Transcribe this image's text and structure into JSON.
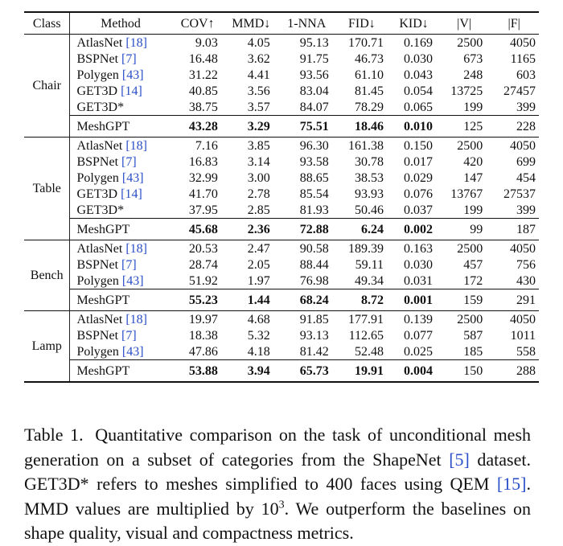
{
  "table": {
    "headers": [
      "Class",
      "Method",
      "COV↑",
      "MMD↓",
      "1-NNA",
      "FID↓",
      "KID↓",
      "|V|",
      "|F|"
    ],
    "groups": [
      {
        "class": "Chair",
        "rows": [
          {
            "method": "AtlasNet",
            "cite": "[18]",
            "cov": "9.03",
            "mmd": "4.05",
            "nna": "95.13",
            "fid": "170.71",
            "kid": "0.169",
            "v": "2500",
            "f": "4050"
          },
          {
            "method": "BSPNet",
            "cite": "[7]",
            "cov": "16.48",
            "mmd": "3.62",
            "nna": "91.75",
            "fid": "46.73",
            "kid": "0.030",
            "v": "673",
            "f": "1165"
          },
          {
            "method": "Polygen",
            "cite": "[43]",
            "cov": "31.22",
            "mmd": "4.41",
            "nna": "93.56",
            "fid": "61.10",
            "kid": "0.043",
            "v": "248",
            "f": "603"
          },
          {
            "method": "GET3D",
            "cite": "[14]",
            "cov": "40.85",
            "mmd": "3.56",
            "nna": "83.04",
            "fid": "81.45",
            "kid": "0.054",
            "v": "13725",
            "f": "27457"
          },
          {
            "method": "GET3D*",
            "cite": "",
            "cov": "38.75",
            "mmd": "3.57",
            "nna": "84.07",
            "fid": "78.29",
            "kid": "0.065",
            "v": "199",
            "f": "399"
          }
        ],
        "meshgpt": {
          "method": "MeshGPT",
          "cov": "43.28",
          "mmd": "3.29",
          "nna": "75.51",
          "fid": "18.46",
          "kid": "0.010",
          "v": "125",
          "f": "228"
        }
      },
      {
        "class": "Table",
        "rows": [
          {
            "method": "AtlasNet",
            "cite": "[18]",
            "cov": "7.16",
            "mmd": "3.85",
            "nna": "96.30",
            "fid": "161.38",
            "kid": "0.150",
            "v": "2500",
            "f": "4050"
          },
          {
            "method": "BSPNet",
            "cite": "[7]",
            "cov": "16.83",
            "mmd": "3.14",
            "nna": "93.58",
            "fid": "30.78",
            "kid": "0.017",
            "v": "420",
            "f": "699"
          },
          {
            "method": "Polygen",
            "cite": "[43]",
            "cov": "32.99",
            "mmd": "3.00",
            "nna": "88.65",
            "fid": "38.53",
            "kid": "0.029",
            "v": "147",
            "f": "454"
          },
          {
            "method": "GET3D",
            "cite": "[14]",
            "cov": "41.70",
            "mmd": "2.78",
            "nna": "85.54",
            "fid": "93.93",
            "kid": "0.076",
            "v": "13767",
            "f": "27537"
          },
          {
            "method": "GET3D*",
            "cite": "",
            "cov": "37.95",
            "mmd": "2.85",
            "nna": "81.93",
            "fid": "50.46",
            "kid": "0.037",
            "v": "199",
            "f": "399"
          }
        ],
        "meshgpt": {
          "method": "MeshGPT",
          "cov": "45.68",
          "mmd": "2.36",
          "nna": "72.88",
          "fid": "6.24",
          "kid": "0.002",
          "v": "99",
          "f": "187"
        }
      },
      {
        "class": "Bench",
        "rows": [
          {
            "method": "AtlasNet",
            "cite": "[18]",
            "cov": "20.53",
            "mmd": "2.47",
            "nna": "90.58",
            "fid": "189.39",
            "kid": "0.163",
            "v": "2500",
            "f": "4050"
          },
          {
            "method": "BSPNet",
            "cite": "[7]",
            "cov": "28.74",
            "mmd": "2.05",
            "nna": "88.44",
            "fid": "59.11",
            "kid": "0.030",
            "v": "457",
            "f": "756"
          },
          {
            "method": "Polygen",
            "cite": "[43]",
            "cov": "51.92",
            "mmd": "1.97",
            "nna": "76.98",
            "fid": "49.34",
            "kid": "0.031",
            "v": "172",
            "f": "430"
          }
        ],
        "meshgpt": {
          "method": "MeshGPT",
          "cov": "55.23",
          "mmd": "1.44",
          "nna": "68.24",
          "fid": "8.72",
          "kid": "0.001",
          "v": "159",
          "f": "291"
        }
      },
      {
        "class": "Lamp",
        "rows": [
          {
            "method": "AtlasNet",
            "cite": "[18]",
            "cov": "19.97",
            "mmd": "4.68",
            "nna": "91.85",
            "fid": "177.91",
            "kid": "0.139",
            "v": "2500",
            "f": "4050"
          },
          {
            "method": "BSPNet",
            "cite": "[7]",
            "cov": "18.38",
            "mmd": "5.32",
            "nna": "93.13",
            "fid": "112.65",
            "kid": "0.077",
            "v": "587",
            "f": "1011"
          },
          {
            "method": "Polygen",
            "cite": "[43]",
            "cov": "47.86",
            "mmd": "4.18",
            "nna": "81.42",
            "fid": "52.48",
            "kid": "0.025",
            "v": "185",
            "f": "558"
          }
        ],
        "meshgpt": {
          "method": "MeshGPT",
          "cov": "53.88",
          "mmd": "3.94",
          "nna": "65.73",
          "fid": "19.91",
          "kid": "0.004",
          "v": "150",
          "f": "288"
        }
      }
    ]
  },
  "caption": {
    "label": "Table 1.",
    "part1": "Quantitative comparison on the task of unconditional mesh generation on a subset of categories from the ShapeNet",
    "cite1": "[5]",
    "part2": "dataset. GET3D* refers to meshes simplified to 400 faces using QEM",
    "cite2": "[15]",
    "part3": ". MMD values are multiplied by 10",
    "exp": "3",
    "part4": ". We outperform the baselines on shape quality, visual and compactness metrics."
  }
}
